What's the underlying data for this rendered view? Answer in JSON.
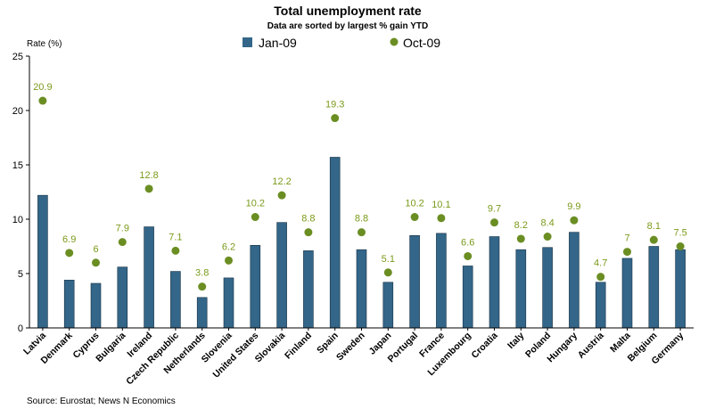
{
  "chart_data": {
    "type": "bar",
    "title": "Total unemployment rate",
    "subtitle": "Data are sorted by largest % gain YTD",
    "ylabel": "Rate (%)",
    "xlabel": "",
    "ylim": [
      0,
      25
    ],
    "yticks": [
      0,
      5,
      10,
      15,
      20,
      25
    ],
    "legend_position": "top",
    "grid": false,
    "source": "Source: Eurostat; News N Economics",
    "categories": [
      "Latvia",
      "Denmark",
      "Cyprus",
      "Bulgaria",
      "Ireland",
      "Czech Republic",
      "Netherlands",
      "Slovenia",
      "United States",
      "Slovakia",
      "Finland",
      "Spain",
      "Sweden",
      "Japan",
      "Portugal",
      "France",
      "Luxembourg",
      "Croatia",
      "Italy",
      "Poland",
      "Hungary",
      "Austria",
      "Malta",
      "Belgium",
      "Germany"
    ],
    "series": [
      {
        "name": "Jan-09",
        "type": "bar",
        "color": "#336688",
        "values": [
          12.2,
          4.4,
          4.1,
          5.6,
          9.3,
          5.2,
          2.8,
          4.6,
          7.6,
          9.7,
          7.1,
          15.7,
          7.2,
          4.2,
          8.5,
          8.7,
          5.7,
          8.4,
          7.2,
          7.4,
          8.8,
          4.2,
          6.4,
          7.5,
          7.2
        ]
      },
      {
        "name": "Oct-09",
        "type": "marker",
        "color": "#6b8e23",
        "values": [
          20.9,
          6.9,
          6,
          7.9,
          12.8,
          7.1,
          3.8,
          6.2,
          10.2,
          12.2,
          8.8,
          19.3,
          8.8,
          5.1,
          10.2,
          10.1,
          6.6,
          9.7,
          8.2,
          8.4,
          9.9,
          4.7,
          7,
          8.1,
          7.5
        ],
        "labels": [
          "20.9",
          "6.9",
          "6",
          "7.9",
          "12.8",
          "7.1",
          "3.8",
          "6.2",
          "10.2",
          "12.2",
          "8.8",
          "19.3",
          "8.8",
          "5.1",
          "10.2",
          "10.1",
          "6.6",
          "9.7",
          "8.2",
          "8.4",
          "9.9",
          "4.7",
          "7",
          "8.1",
          "7.5"
        ]
      }
    ]
  }
}
